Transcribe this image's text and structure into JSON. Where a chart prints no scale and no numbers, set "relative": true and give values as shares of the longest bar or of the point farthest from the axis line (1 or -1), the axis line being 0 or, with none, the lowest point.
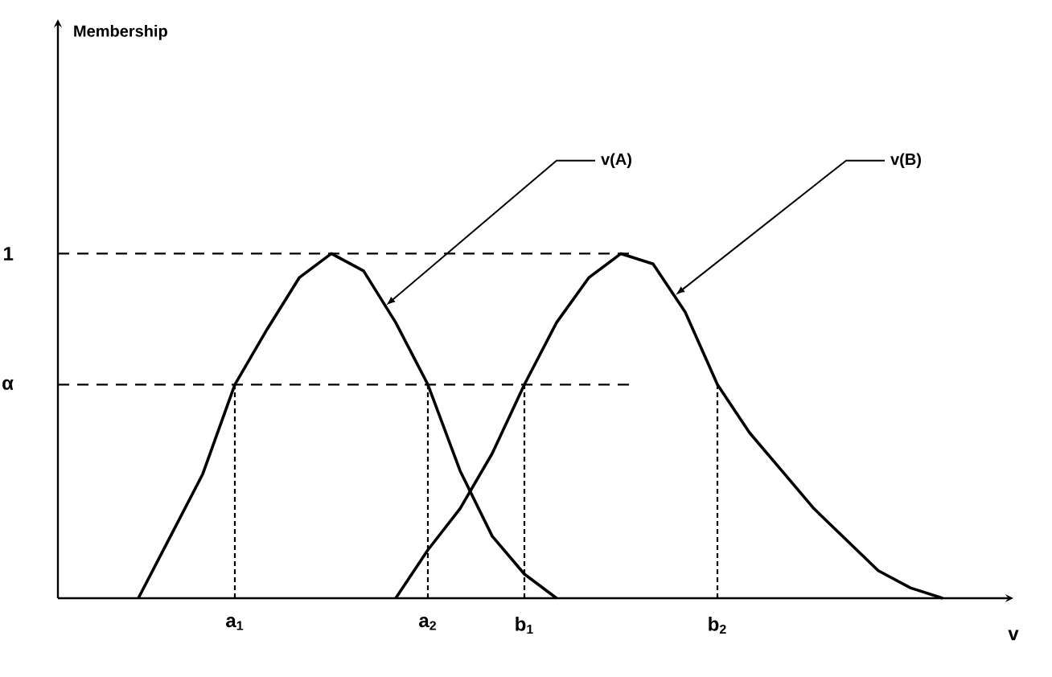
{
  "chart_data": {
    "type": "line",
    "relative": true,
    "annotations": [
      "Membership"
    ],
    "xlabel": "v",
    "categories": [
      null,
      null,
      null,
      null,
      null,
      "a$_{1}$",
      null,
      null,
      null,
      null,
      null,
      "a$_{2}$",
      null,
      null,
      "b$_{1}$",
      null,
      null,
      null,
      null,
      null,
      "b$_{2}$",
      null,
      null,
      null,
      null,
      null,
      null,
      null,
      null
    ],
    "series": [
      {
        "name": "v(A)",
        "color": "#000000",
        "values": [
          null,
          null,
          0,
          0.18,
          0.36,
          0.62,
          0.78,
          0.93,
          1.0,
          0.95,
          0.8,
          0.62,
          0.37,
          0.18,
          0.07,
          0,
          null,
          null,
          null,
          null,
          null,
          null,
          null,
          null,
          null,
          null,
          null,
          null,
          null
        ]
      },
      {
        "name": "v(B)",
        "color": "#000000",
        "values": [
          null,
          null,
          null,
          null,
          null,
          null,
          null,
          null,
          null,
          null,
          0,
          0.14,
          0.26,
          0.42,
          0.62,
          0.8,
          0.93,
          1.0,
          0.97,
          0.83,
          0.62,
          0.48,
          0.37,
          0.26,
          0.17,
          0.08,
          0.03,
          0,
          null
        ]
      }
    ],
    "ref_lines": [
      {
        "axis": "y",
        "value": 1,
        "label": "1",
        "line_style": "dashed"
      },
      {
        "axis": "y",
        "value": 0.62,
        "label": "α",
        "line_style": "dashed"
      },
      {
        "axis": "x",
        "value": "a$_{1}$",
        "line_style": "dotted"
      },
      {
        "axis": "x",
        "value": "a$_{2}$",
        "line_style": "dotted"
      },
      {
        "axis": "x",
        "value": "b$_{1}$",
        "line_style": "dotted"
      },
      {
        "axis": "x",
        "value": "b$_{2}$",
        "line_style": "dotted"
      }
    ]
  }
}
